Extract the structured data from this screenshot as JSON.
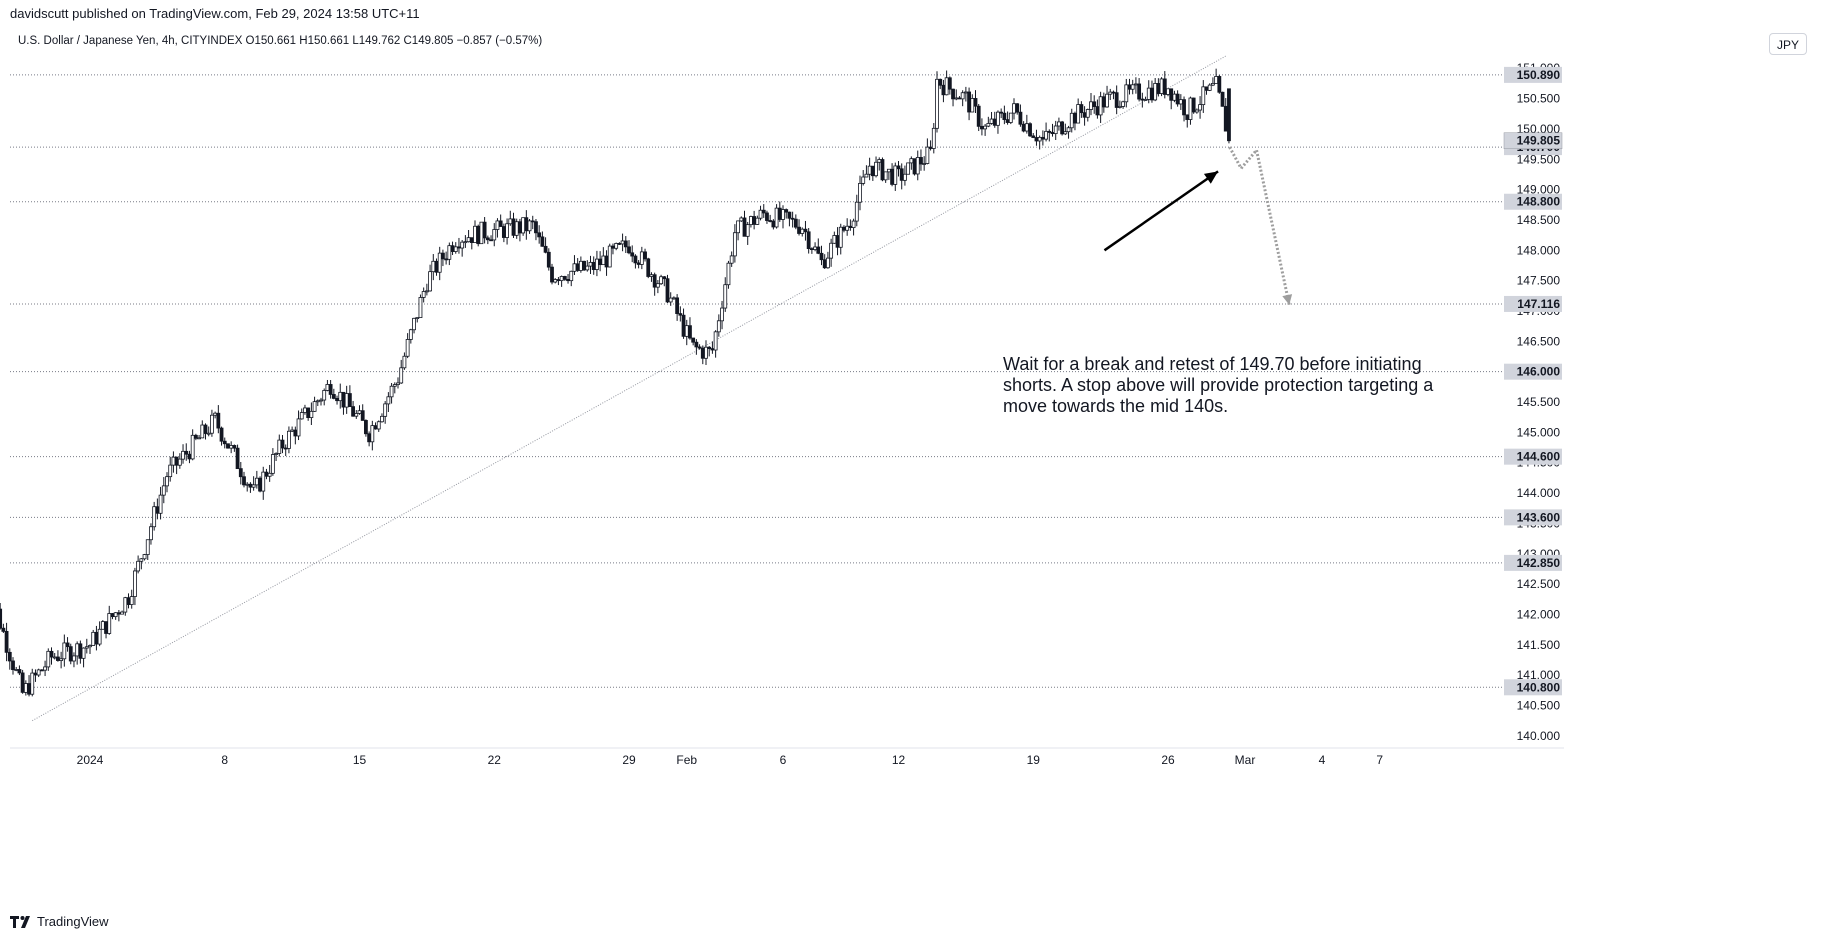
{
  "header": {
    "published_line": "davidscutt published on TradingView.com, Feb 29, 2024 13:58 UTC+11",
    "symbol_line": "U.S. Dollar / Japanese Yen, 4h, CITYINDEX  O150.661  H150.661  L149.762  C149.805 −0.857 (−0.57%)",
    "currency_button": "JPY"
  },
  "footer": {
    "logo_text": "TradingView"
  },
  "colors": {
    "candle": "#131722",
    "levels": "#787b86",
    "trendline": "#9598a1",
    "arrow": "#000000",
    "projection": "#9e9e9e",
    "current_price_bg": "#d1d4dc",
    "level_label_bg": "#d1d4dc"
  },
  "chart_data": {
    "type": "candlestick",
    "instrument": "U.S. Dollar / Japanese Yen",
    "timeframe": "4h",
    "ohlc_last": {
      "open": 150.661,
      "high": 150.661,
      "low": 149.762,
      "close": 149.805,
      "change": -0.857,
      "change_pct": -0.57
    },
    "ylim": [
      139.8,
      151.3
    ],
    "y_ticks": [
      140.0,
      140.5,
      141.0,
      141.5,
      142.0,
      142.5,
      143.0,
      143.5,
      144.0,
      144.5,
      145.0,
      145.5,
      146.0,
      146.5,
      147.0,
      147.5,
      148.0,
      148.5,
      149.0,
      149.5,
      150.0,
      150.5,
      151.0
    ],
    "y_tick_labels": [
      "140.000",
      "140.500",
      "141.000",
      "141.500",
      "142.000",
      "142.500",
      "143.000",
      "143.500",
      "144.000",
      "144.500",
      "145.000",
      "145.500",
      "146.000",
      "146.500",
      "147.000",
      "147.500",
      "148.000",
      "148.500",
      "149.000",
      "149.500",
      "150.000",
      "150.500",
      "151.000"
    ],
    "xlim": [
      -5,
      52.3
    ],
    "x_ticks": [
      {
        "day": 1,
        "label": "2024"
      },
      {
        "day": 8,
        "label": "8"
      },
      {
        "day": 15,
        "label": "15"
      },
      {
        "day": 22,
        "label": "22"
      },
      {
        "day": 29,
        "label": "29"
      },
      {
        "day": 32,
        "label": "Feb"
      },
      {
        "day": 37,
        "label": "6"
      },
      {
        "day": 43,
        "label": "12"
      },
      {
        "day": 50,
        "label": "19"
      },
      {
        "day": 57,
        "label": "26"
      },
      {
        "day": 61,
        "label": "Mar"
      },
      {
        "day": 65,
        "label": "4"
      },
      {
        "day": 68,
        "label": "7"
      }
    ],
    "horizontal_levels": [
      {
        "price": 150.89,
        "label": "150.890"
      },
      {
        "price": 149.7,
        "label": "149.700"
      },
      {
        "price": 148.8,
        "label": "148.800"
      },
      {
        "price": 147.116,
        "label": "147.116"
      },
      {
        "price": 146.0,
        "label": "146.000"
      },
      {
        "price": 144.6,
        "label": "144.600"
      },
      {
        "price": 143.6,
        "label": "143.600"
      },
      {
        "price": 142.85,
        "label": "142.850"
      },
      {
        "price": 140.8,
        "label": "140.800"
      }
    ],
    "current_price": {
      "price": 149.805,
      "label": "149.805"
    },
    "trendline": [
      {
        "day": -2,
        "price": 140.25
      },
      {
        "day": 60,
        "price": 151.2
      }
    ],
    "anchors": [
      {
        "day": -4.5,
        "close": 142.7
      },
      {
        "day": -2.5,
        "close": 140.7
      },
      {
        "day": -1,
        "close": 141.3
      },
      {
        "day": 1,
        "close": 141.5
      },
      {
        "day": 3,
        "close": 142.3
      },
      {
        "day": 5,
        "close": 144.3
      },
      {
        "day": 7.5,
        "close": 145.2
      },
      {
        "day": 9.5,
        "close": 144.0
      },
      {
        "day": 11,
        "close": 144.8
      },
      {
        "day": 13.5,
        "close": 145.8
      },
      {
        "day": 15.5,
        "close": 145.0
      },
      {
        "day": 17,
        "close": 145.9
      },
      {
        "day": 18.5,
        "close": 147.5
      },
      {
        "day": 20,
        "close": 148.2
      },
      {
        "day": 21.5,
        "close": 148.3
      },
      {
        "day": 24,
        "close": 148.4
      },
      {
        "day": 25,
        "close": 147.6
      },
      {
        "day": 27,
        "close": 147.7
      },
      {
        "day": 29,
        "close": 148.1
      },
      {
        "day": 31,
        "close": 147.3
      },
      {
        "day": 32.3,
        "close": 146.4
      },
      {
        "day": 33.3,
        "close": 146.3
      },
      {
        "day": 34.5,
        "close": 148.3
      },
      {
        "day": 36,
        "close": 148.6
      },
      {
        "day": 38,
        "close": 148.4
      },
      {
        "day": 39,
        "close": 147.8
      },
      {
        "day": 40.5,
        "close": 148.5
      },
      {
        "day": 41.5,
        "close": 149.4
      },
      {
        "day": 43,
        "close": 149.2
      },
      {
        "day": 44.7,
        "close": 149.6
      },
      {
        "day": 45,
        "close": 150.8
      },
      {
        "day": 46.5,
        "close": 150.5
      },
      {
        "day": 47.5,
        "close": 150.0
      },
      {
        "day": 49,
        "close": 150.3
      },
      {
        "day": 50.5,
        "close": 149.8
      },
      {
        "day": 52,
        "close": 150.2
      },
      {
        "day": 54,
        "close": 150.5
      },
      {
        "day": 55.5,
        "close": 150.6
      },
      {
        "day": 57,
        "close": 150.7
      },
      {
        "day": 58,
        "close": 150.3
      },
      {
        "day": 59.5,
        "close": 150.7
      },
      {
        "day": 60.2,
        "close": 149.805
      }
    ],
    "projection": [
      {
        "day": 60.2,
        "price": 149.7
      },
      {
        "day": 60.8,
        "price": 149.35
      },
      {
        "day": 61.6,
        "price": 149.65
      },
      {
        "day": 63.3,
        "price": 147.1
      }
    ],
    "annotation": {
      "text_lines": [
        "Wait for a break and retest of 149.70 before initiating",
        "shorts. A stop above will provide protection targeting a",
        "move towards the mid 140s."
      ],
      "arrow_from": {
        "day": 53.7,
        "price": 148.0
      },
      "arrow_to": {
        "day": 59.6,
        "price": 149.3
      }
    }
  }
}
